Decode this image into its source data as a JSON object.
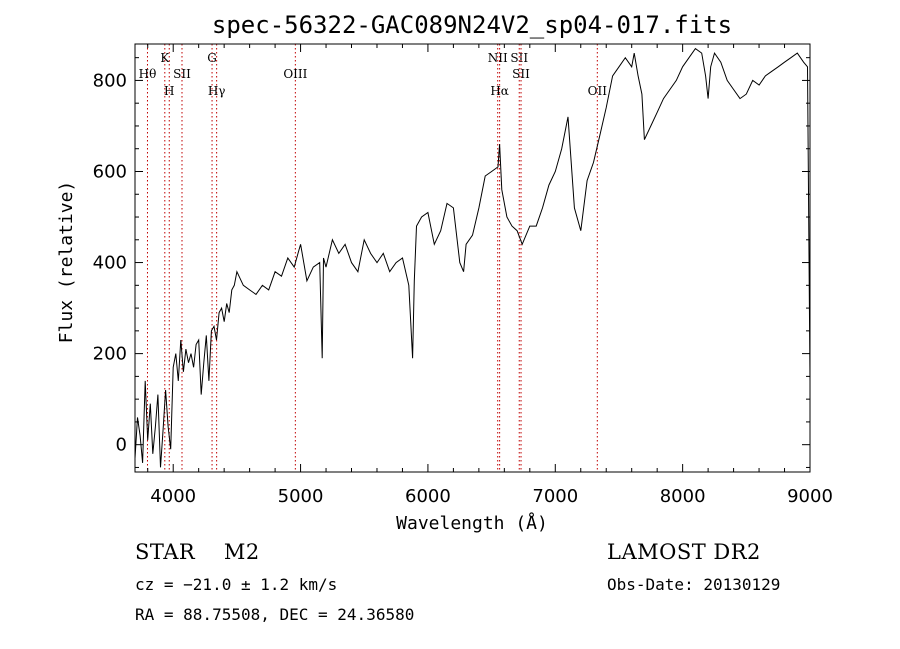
{
  "chart_data": {
    "type": "line",
    "title": "spec-56322-GAC089N24V2_sp04-017.fits",
    "xlabel": "Wavelength (Å)",
    "ylabel": "Flux (relative)",
    "xlim": [
      3700,
      9000
    ],
    "ylim": [
      -60,
      880
    ],
    "x_ticks": [
      4000,
      5000,
      6000,
      7000,
      8000,
      9000
    ],
    "y_ticks": [
      0,
      200,
      400,
      600,
      800
    ],
    "grid": false,
    "series_color": "#000000",
    "line_color": "#c00000",
    "spectral_lines": [
      {
        "label": "Hθ",
        "wavelength": 3798,
        "label_row": "top"
      },
      {
        "label": "K",
        "wavelength": 3934,
        "label_row": "upper"
      },
      {
        "label": "H",
        "wavelength": 3969,
        "label_row": "mid"
      },
      {
        "label": "SII",
        "wavelength": 4069,
        "label_row": "top"
      },
      {
        "label": "G",
        "wavelength": 4305,
        "label_row": "upper"
      },
      {
        "label": "Hγ",
        "wavelength": 4341,
        "label_row": "mid"
      },
      {
        "label": "OIII",
        "wavelength": 4959,
        "label_row": "top"
      },
      {
        "label": "NII",
        "wavelength": 6548,
        "label_row": "upper"
      },
      {
        "label": "Hα",
        "wavelength": 6563,
        "label_row": "mid"
      },
      {
        "label": "SII",
        "wavelength": 6717,
        "label_row": "upper"
      },
      {
        "label": "SII",
        "wavelength": 6731,
        "label_row": "top"
      },
      {
        "label": "OII",
        "wavelength": 7330,
        "label_row": "mid"
      }
    ],
    "x": [
      3700,
      3720,
      3740,
      3760,
      3780,
      3800,
      3820,
      3840,
      3860,
      3880,
      3900,
      3920,
      3940,
      3960,
      3980,
      4000,
      4020,
      4040,
      4060,
      4080,
      4100,
      4120,
      4140,
      4160,
      4180,
      4200,
      4220,
      4240,
      4260,
      4280,
      4300,
      4320,
      4340,
      4360,
      4380,
      4400,
      4420,
      4440,
      4460,
      4480,
      4500,
      4550,
      4600,
      4650,
      4700,
      4750,
      4800,
      4850,
      4900,
      4950,
      4980,
      5000,
      5050,
      5100,
      5150,
      5170,
      5180,
      5200,
      5250,
      5300,
      5350,
      5400,
      5450,
      5500,
      5550,
      5600,
      5650,
      5700,
      5750,
      5800,
      5850,
      5880,
      5893,
      5910,
      5950,
      6000,
      6050,
      6100,
      6150,
      6200,
      6250,
      6280,
      6300,
      6350,
      6400,
      6450,
      6500,
      6550,
      6563,
      6580,
      6620,
      6660,
      6700,
      6740,
      6800,
      6850,
      6900,
      6950,
      7000,
      7050,
      7100,
      7150,
      7200,
      7250,
      7300,
      7350,
      7400,
      7450,
      7500,
      7550,
      7600,
      7620,
      7650,
      7680,
      7700,
      7750,
      7800,
      7850,
      7900,
      7950,
      8000,
      8050,
      8100,
      8150,
      8180,
      8200,
      8220,
      8250,
      8300,
      8350,
      8400,
      8450,
      8500,
      8550,
      8600,
      8650,
      8700,
      8750,
      8800,
      8850,
      8900,
      8950,
      8980,
      9000
    ],
    "y": [
      -30,
      60,
      20,
      -40,
      140,
      10,
      90,
      -20,
      40,
      110,
      -50,
      30,
      120,
      40,
      -10,
      170,
      200,
      140,
      230,
      160,
      210,
      180,
      200,
      170,
      220,
      230,
      110,
      180,
      240,
      140,
      250,
      260,
      230,
      290,
      300,
      270,
      310,
      290,
      340,
      350,
      380,
      350,
      340,
      330,
      350,
      340,
      380,
      370,
      410,
      390,
      420,
      440,
      360,
      390,
      400,
      190,
      410,
      390,
      450,
      420,
      440,
      400,
      380,
      450,
      420,
      400,
      420,
      380,
      400,
      410,
      350,
      190,
      360,
      480,
      500,
      510,
      440,
      470,
      530,
      520,
      400,
      380,
      440,
      460,
      520,
      590,
      600,
      610,
      660,
      560,
      500,
      480,
      470,
      440,
      480,
      480,
      520,
      570,
      600,
      650,
      720,
      520,
      470,
      580,
      620,
      680,
      740,
      810,
      830,
      850,
      830,
      860,
      810,
      770,
      670,
      700,
      730,
      760,
      780,
      800,
      830,
      850,
      870,
      860,
      810,
      760,
      830,
      860,
      840,
      800,
      780,
      760,
      770,
      800,
      790,
      810,
      820,
      830,
      840,
      850,
      860,
      840,
      830,
      140
    ]
  }
}
